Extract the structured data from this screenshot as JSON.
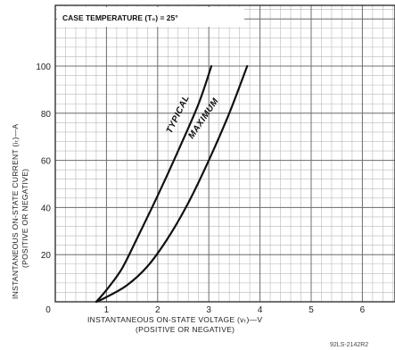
{
  "chart_data": {
    "type": "line",
    "annotation": "CASE TEMPERATURE (T₀) = 25°",
    "xlabel": "INSTANTANEOUS ON-STATE VOLTAGE (vₜ)—V",
    "xlabel_sub": "(POSITIVE OR NEGATIVE)",
    "ylabel": "INSTANTANEOUS ON-STATE CURRENT (iₜ)—A",
    "ylabel_sub": "(POSITIVE OR NEGATIVE)",
    "xlim": [
      0,
      7
    ],
    "ylim": [
      0,
      110
    ],
    "x_ticks": [
      "0",
      "1",
      "2",
      "3",
      "4",
      "5",
      "6"
    ],
    "y_ticks": [
      "20",
      "40",
      "60",
      "80",
      "100"
    ],
    "grid": true,
    "series": [
      {
        "name": "TYPICAL",
        "x": [
          0.8,
          1.0,
          1.3,
          1.6,
          2.0,
          2.4,
          2.8,
          3.05
        ],
        "y": [
          0,
          5,
          14,
          27,
          45,
          64,
          84,
          100
        ]
      },
      {
        "name": "MAXIMUM",
        "x": [
          0.8,
          1.0,
          1.4,
          1.8,
          2.2,
          2.6,
          3.0,
          3.4,
          3.75
        ],
        "y": [
          0,
          2,
          7,
          15,
          27,
          42,
          60,
          80,
          100
        ]
      }
    ],
    "figure_ref": "92LS-2142R2"
  }
}
